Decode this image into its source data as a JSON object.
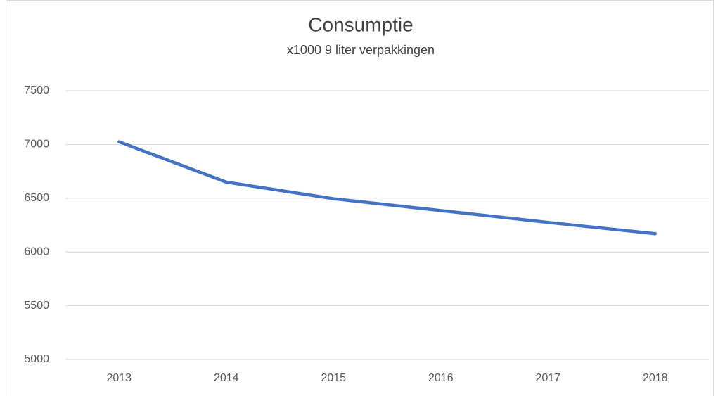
{
  "chart_data": {
    "type": "line",
    "title": "Consumptie",
    "subtitle": "x1000 9 liter verpakkingen",
    "categories": [
      "2013",
      "2014",
      "2015",
      "2016",
      "2017",
      "2018"
    ],
    "series": [
      {
        "name": "Consumptie",
        "color": "#4472c4",
        "values": [
          7025,
          6650,
          6495,
          6385,
          6275,
          6170
        ]
      }
    ],
    "ylim": [
      5000,
      7500
    ],
    "yticks": [
      5000,
      5500,
      6000,
      6500,
      7000,
      7500
    ],
    "grid": true
  }
}
